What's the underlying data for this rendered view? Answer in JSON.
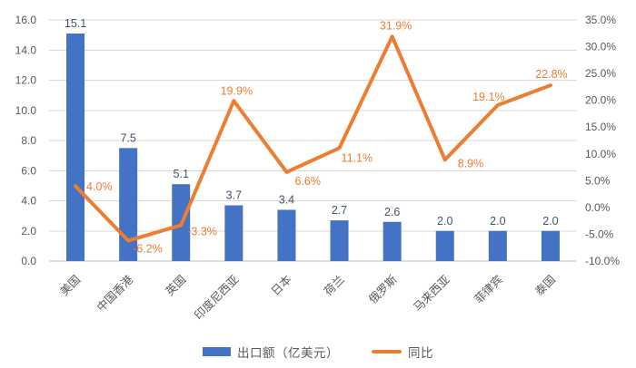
{
  "chart_data": {
    "type": "combo",
    "categories": [
      "美国",
      "中国香港",
      "英国",
      "印度尼西亚",
      "日本",
      "荷兰",
      "俄罗斯",
      "马来西亚",
      "菲律宾",
      "泰国"
    ],
    "series": [
      {
        "name": "出口额（亿美元）",
        "type": "bar",
        "axis": "left",
        "values": [
          15.1,
          7.5,
          5.1,
          3.7,
          3.4,
          2.7,
          2.6,
          2.0,
          2.0,
          2.0
        ],
        "labels": [
          "15.1",
          "7.5",
          "5.1",
          "3.7",
          "3.4",
          "2.7",
          "2.6",
          "2.0",
          "2.0",
          "2.0"
        ]
      },
      {
        "name": "同比",
        "type": "line",
        "axis": "right",
        "values": [
          4.0,
          -6.2,
          -3.3,
          19.9,
          6.6,
          11.1,
          31.9,
          8.9,
          19.1,
          22.8
        ],
        "labels": [
          "4.0%",
          "-6.2%",
          "-3.3%",
          "19.9%",
          "6.6%",
          "11.1%",
          "31.9%",
          "8.9%",
          "19.1%",
          "22.8%"
        ]
      }
    ],
    "left_axis": {
      "min": 0,
      "max": 16,
      "step": 2,
      "tick_labels": [
        "0.0",
        "2.0",
        "4.0",
        "6.0",
        "8.0",
        "10.0",
        "12.0",
        "14.0",
        "16.0"
      ]
    },
    "right_axis": {
      "min": -10,
      "max": 35,
      "step": 5,
      "tick_labels": [
        "-10.0%",
        "-5.0%",
        "0.0%",
        "5.0%",
        "10.0%",
        "15.0%",
        "20.0%",
        "25.0%",
        "30.0%",
        "35.0%"
      ]
    },
    "grid": true,
    "legend_position": "bottom",
    "title": "",
    "xlabel": "",
    "ylabel": ""
  },
  "colors": {
    "bar": "#4472C4",
    "line": "#ED7D31",
    "bar_label": "#44546A",
    "line_label": "#ED7D31",
    "tick_label": "#595959",
    "category_label": "#595959",
    "gridline": "#D9D9D9",
    "axis_line": "#BFBFBF",
    "background": "#FFFFFF"
  }
}
